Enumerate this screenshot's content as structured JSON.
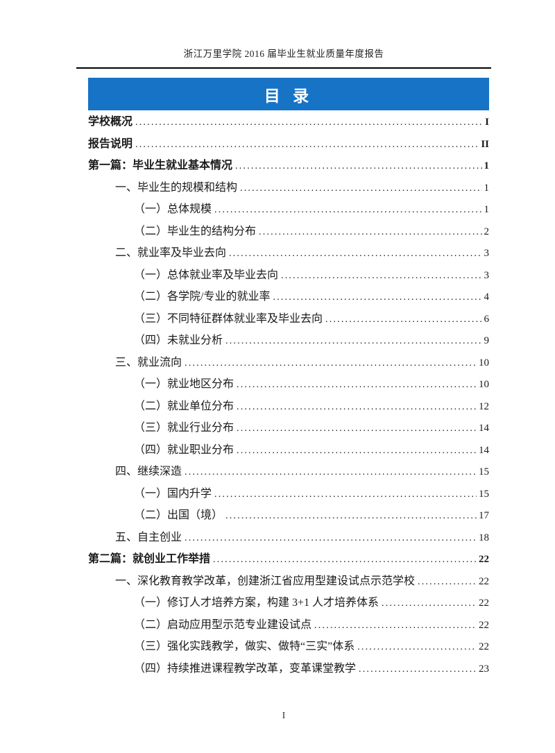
{
  "colors": {
    "banner_bg": "#1773C5",
    "banner_text": "#FFFFFF",
    "rule": "#000000",
    "text": "#1A1A1A"
  },
  "header": {
    "title": "浙江万里学院 2016 届毕业生就业质量年度报告"
  },
  "banner": {
    "title": "目 录"
  },
  "footer": {
    "page_number": "I"
  },
  "toc": {
    "entries": [
      {
        "level": 0,
        "bold": true,
        "title": "学校概况",
        "page": "I"
      },
      {
        "level": 0,
        "bold": true,
        "title": "报告说明",
        "page": "II"
      },
      {
        "level": 0,
        "bold": true,
        "title": "第一篇：毕业生就业基本情况",
        "page": "1"
      },
      {
        "level": 1,
        "bold": false,
        "title": "一、毕业生的规模和结构",
        "page": "1"
      },
      {
        "level": 2,
        "bold": false,
        "title": "（一）总体规模",
        "page": "1"
      },
      {
        "level": 2,
        "bold": false,
        "title": "（二）毕业生的结构分布",
        "page": "2"
      },
      {
        "level": 1,
        "bold": false,
        "title": "二、就业率及毕业去向",
        "page": "3"
      },
      {
        "level": 2,
        "bold": false,
        "title": "（一）总体就业率及毕业去向",
        "page": "3"
      },
      {
        "level": 2,
        "bold": false,
        "title": "（二）各学院/专业的就业率",
        "page": "4"
      },
      {
        "level": 2,
        "bold": false,
        "title": "（三）不同特征群体就业率及毕业去向",
        "page": "6"
      },
      {
        "level": 2,
        "bold": false,
        "title": "（四）未就业分析",
        "page": "9"
      },
      {
        "level": 1,
        "bold": false,
        "title": "三、就业流向",
        "page": "10"
      },
      {
        "level": 2,
        "bold": false,
        "title": "（一）就业地区分布",
        "page": "10"
      },
      {
        "level": 2,
        "bold": false,
        "title": "（二）就业单位分布",
        "page": "12"
      },
      {
        "level": 2,
        "bold": false,
        "title": "（三）就业行业分布",
        "page": "14"
      },
      {
        "level": 2,
        "bold": false,
        "title": "（四）就业职业分布",
        "page": "14"
      },
      {
        "level": 1,
        "bold": false,
        "title": "四、继续深造",
        "page": "15"
      },
      {
        "level": 2,
        "bold": false,
        "title": "（一）国内升学",
        "page": "15"
      },
      {
        "level": 2,
        "bold": false,
        "title": "（二）出国（境）",
        "page": "17"
      },
      {
        "level": 1,
        "bold": false,
        "title": "五、自主创业",
        "page": "18"
      },
      {
        "level": 0,
        "bold": true,
        "title": "第二篇：就创业工作举措",
        "page": "22"
      },
      {
        "level": 1,
        "bold": false,
        "title": "一、深化教育教学改革，创建浙江省应用型建设试点示范学校",
        "page": "22"
      },
      {
        "level": 2,
        "bold": false,
        "title": "（一）修订人才培养方案，构建 3+1 人才培养体系",
        "page": "22"
      },
      {
        "level": 2,
        "bold": false,
        "title": "（二）启动应用型示范专业建设试点",
        "page": "22"
      },
      {
        "level": 2,
        "bold": false,
        "title": "（三）强化实践教学，做实、做特“三实”体系",
        "page": "22"
      },
      {
        "level": 2,
        "bold": false,
        "title": "（四）持续推进课程教学改革，变革课堂教学",
        "page": "23"
      }
    ]
  }
}
